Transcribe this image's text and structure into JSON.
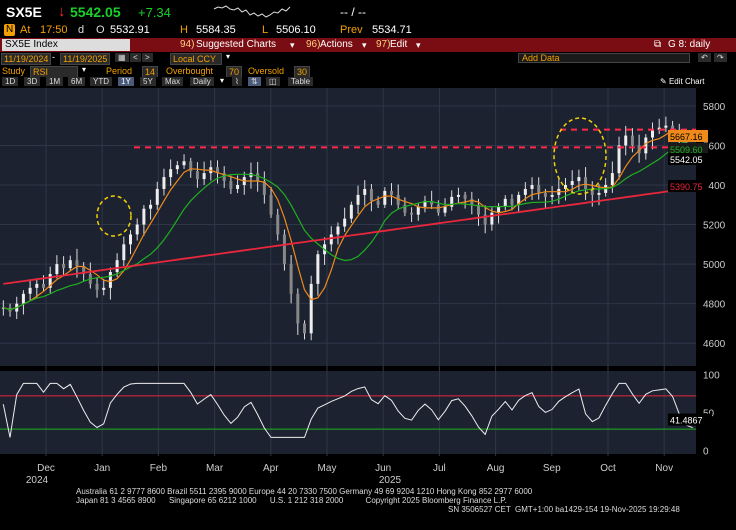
{
  "header": {
    "ticker": "SX5E",
    "arrow": "↓",
    "last": "5542.05",
    "change": "+7.34",
    "placeholder": "--  /  --"
  },
  "quote_line": {
    "badge": "N",
    "at_label": "At",
    "time": "17:50",
    "d_label": "d",
    "o_label": "O",
    "open": "5532.91",
    "h_label": "H",
    "high": "5584.35",
    "l_label": "L",
    "low": "5506.10",
    "prev_label": "Prev",
    "prev": "5534.71"
  },
  "menu_bar": {
    "security": "SX5E Index",
    "items": [
      {
        "num": "94)",
        "label": "Suggested Charts"
      },
      {
        "num": "96)",
        "label": "Actions"
      },
      {
        "num": "97)",
        "label": "Edit"
      }
    ],
    "right_label": "G 8: daily"
  },
  "date_controls": {
    "start": "11/19/2024",
    "end": "11/19/2025",
    "currency": "Local CCY",
    "add_data": "Add Data",
    "edit_chart": "Edit Chart"
  },
  "study": {
    "label": "Study",
    "name": "RSI",
    "period_label": "Period",
    "period": "14",
    "overbought_label": "Overbought",
    "overbought": "70",
    "oversold_label": "Oversold",
    "oversold": "30"
  },
  "range_buttons": [
    "1D",
    "3D",
    "1M",
    "6M",
    "YTD",
    "1Y",
    "5Y",
    "Max"
  ],
  "frequency": "Daily",
  "table_label": "Table",
  "colors": {
    "up": "#17d12a",
    "down": "#ff2a2a",
    "ma_fast": "#f08a1a",
    "ma_mid": "#1fb01f",
    "ma_slow": "#e8273c",
    "amber": "#f4a100",
    "menu_red": "#7a0d13"
  },
  "chart_data": {
    "type": "line",
    "title": "",
    "price_axis_ticks": [
      "5800",
      "5600",
      "5400",
      "5200",
      "5000",
      "4800",
      "4600"
    ],
    "rsi_axis_ticks": [
      "100",
      "50",
      "0"
    ],
    "months": [
      "Dec",
      "Jan",
      "Feb",
      "Mar",
      "Apr",
      "May",
      "Jun",
      "Jul",
      "Aug",
      "Sep",
      "Oct",
      "Nov"
    ],
    "years": [
      "2024",
      "2025"
    ],
    "ylim": [
      4500,
      5850
    ],
    "series": [],
    "price_close": [
      4780,
      4760,
      4800,
      4850,
      4880,
      4900,
      4880,
      4950,
      5000,
      4980,
      5020,
      4990,
      4950,
      4900,
      4870,
      4880,
      4960,
      5020,
      5100,
      5150,
      5200,
      5280,
      5300,
      5380,
      5440,
      5480,
      5500,
      5520,
      5470,
      5430,
      5460,
      5490,
      5460,
      5420,
      5380,
      5400,
      5440,
      5460,
      5420,
      5350,
      5250,
      5150,
      5000,
      4850,
      4700,
      4650,
      4900,
      5050,
      5100,
      5150,
      5190,
      5230,
      5300,
      5350,
      5380,
      5320,
      5300,
      5370,
      5350,
      5300,
      5260,
      5250,
      5290,
      5320,
      5300,
      5260,
      5290,
      5340,
      5350,
      5330,
      5300,
      5250,
      5200,
      5260,
      5290,
      5330,
      5300,
      5350,
      5380,
      5400,
      5360,
      5340,
      5350,
      5380,
      5400,
      5420,
      5440,
      5380,
      5350,
      5360,
      5400,
      5460,
      5600,
      5650,
      5600,
      5560,
      5640,
      5680,
      5690,
      5700,
      5680,
      5620,
      5560,
      5542
    ],
    "rsi_current": "41.4867",
    "overbought": 70,
    "oversold": 30,
    "labels": {
      "ma_fast_value": "5667.16",
      "ma_mid_value": "5509.60",
      "last_value": "5542.05",
      "ma_slow_value": "5390.75",
      "rsi_value": "41.4867"
    },
    "resistance_level": 5680,
    "support_level": 5590
  },
  "footer": {
    "line1": "Australia 61 2 9777 8600 Brazil 5511 2395 9000 Europe 44 20 7330 7500 Germany 49 69 9204 1210 Hong Kong 852 2977 6000",
    "line2": "Japan 81 3 4565 8900      Singapore 65 6212 1000      U.S. 1 212 318 2000          Copyright 2025 Bloomberg Finance L.P.",
    "line3": "SN 3506527 CET  GMT+1:00 ba1429-154 19-Nov-2025 19:29:48"
  }
}
